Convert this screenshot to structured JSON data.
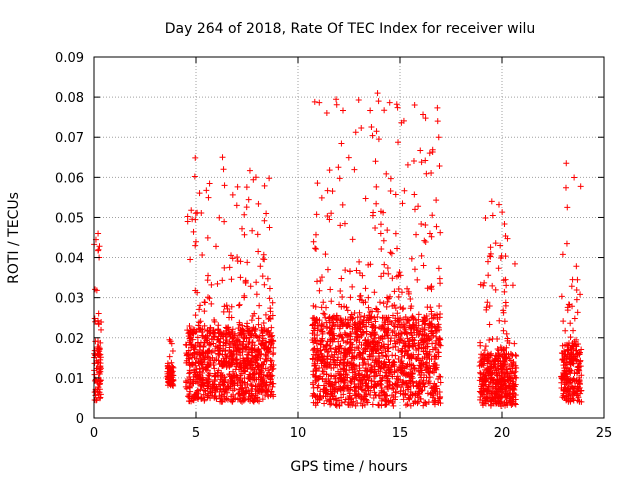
{
  "chart_data": {
    "type": "scatter",
    "title": "Day 264 of 2018, Rate Of TEC Index for receiver wilu",
    "xlabel": "GPS time / hours",
    "ylabel": "ROTI / TECUs",
    "xlim": [
      0,
      25
    ],
    "ylim": [
      0,
      0.09
    ],
    "x_ticks": [
      "0",
      "5",
      "10",
      "15",
      "20",
      "25"
    ],
    "y_ticks": [
      "0",
      "0.01",
      "0.02",
      "0.03",
      "0.04",
      "0.05",
      "0.06",
      "0.07",
      "0.08",
      "0.09"
    ],
    "grid": true,
    "marker": "plus",
    "series_color": "#ff0000",
    "clusters": [
      {
        "x_range": [
          0.0,
          0.35
        ],
        "y_typical": [
          0.004,
          0.018
        ],
        "y_max": 0.046
      },
      {
        "x_range": [
          3.6,
          3.9
        ],
        "y_typical": [
          0.008,
          0.013
        ],
        "y_max": 0.02
      },
      {
        "x_range": [
          4.5,
          8.8
        ],
        "y_typical": [
          0.004,
          0.022
        ],
        "y_max": 0.065
      },
      {
        "x_range": [
          10.7,
          17.0
        ],
        "y_typical": [
          0.003,
          0.025
        ],
        "y_max": 0.081
      },
      {
        "x_range": [
          18.9,
          20.7
        ],
        "y_typical": [
          0.003,
          0.016
        ],
        "y_max": 0.054
      },
      {
        "x_range": [
          22.9,
          23.9
        ],
        "y_typical": [
          0.004,
          0.018
        ],
        "y_max": 0.0635
      }
    ],
    "notable_points": [
      {
        "x": 0.2,
        "y": 0.046
      },
      {
        "x": 0.25,
        "y": 0.04
      },
      {
        "x": 3.7,
        "y": 0.0195
      },
      {
        "x": 6.3,
        "y": 0.065
      },
      {
        "x": 6.35,
        "y": 0.062
      },
      {
        "x": 6.4,
        "y": 0.058
      },
      {
        "x": 7.0,
        "y": 0.053
      },
      {
        "x": 13.9,
        "y": 0.081
      },
      {
        "x": 13.95,
        "y": 0.079
      },
      {
        "x": 13.85,
        "y": 0.0715
      },
      {
        "x": 13.8,
        "y": 0.064
      },
      {
        "x": 16.85,
        "y": 0.074
      },
      {
        "x": 16.9,
        "y": 0.07
      },
      {
        "x": 19.5,
        "y": 0.054
      },
      {
        "x": 19.55,
        "y": 0.0505
      },
      {
        "x": 23.15,
        "y": 0.0635
      },
      {
        "x": 23.2,
        "y": 0.0525
      }
    ]
  }
}
